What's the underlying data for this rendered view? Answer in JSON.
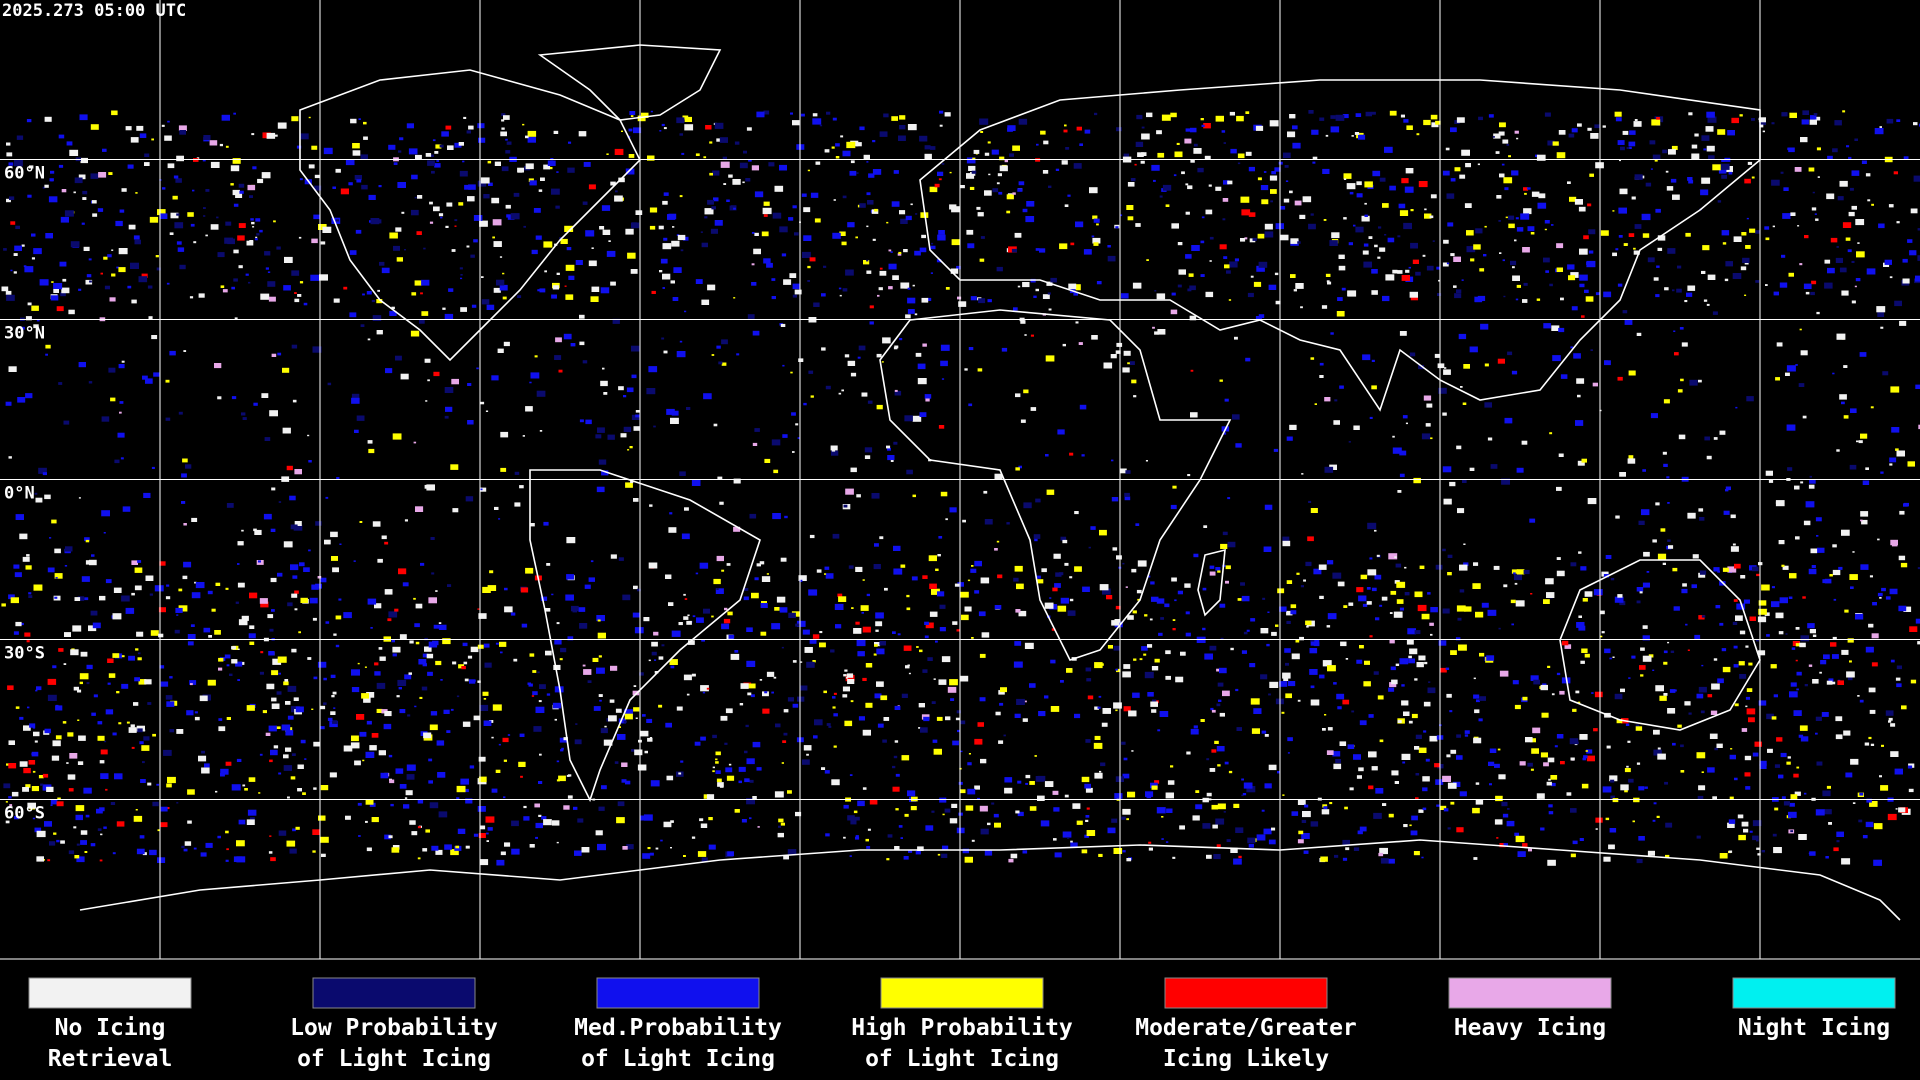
{
  "timestamp": "2025.273 05:00 UTC",
  "latitude_labels": [
    "60°N",
    "30°N",
    "0°N",
    "30°S",
    "60°S"
  ],
  "legend": [
    {
      "lines": [
        "No Icing",
        "Retrieval"
      ],
      "color": "#f2f2f2"
    },
    {
      "lines": [
        "Low Probability",
        "of Light Icing"
      ],
      "color": "#0a0a6e"
    },
    {
      "lines": [
        "Med.Probability",
        "of Light Icing"
      ],
      "color": "#1010ee"
    },
    {
      "lines": [
        "High Probability",
        "of Light Icing"
      ],
      "color": "#ffff00"
    },
    {
      "lines": [
        "Moderate/Greater",
        "Icing Likely"
      ],
      "color": "#ff0000"
    },
    {
      "lines": [
        "Heavy Icing"
      ],
      "color": "#e8a8e8"
    },
    {
      "lines": [
        "Night Icing"
      ],
      "color": "#00f0f0"
    }
  ]
}
